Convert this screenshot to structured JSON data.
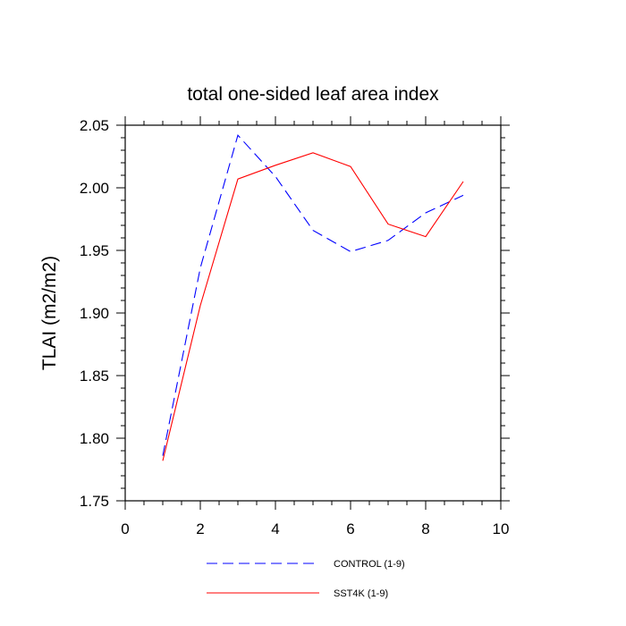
{
  "chart_data": {
    "type": "line",
    "title": "total one-sided leaf area index",
    "xlabel": "",
    "ylabel": "TLAI  (m2/m2)",
    "xlim": [
      0,
      10
    ],
    "ylim": [
      1.75,
      2.05
    ],
    "xticks": [
      0,
      2,
      4,
      6,
      8,
      10
    ],
    "xtick_labels": [
      "0",
      "2",
      "4",
      "6",
      "8",
      "10"
    ],
    "yticks": [
      1.75,
      1.8,
      1.85,
      1.9,
      1.95,
      2.0,
      2.05
    ],
    "ytick_labels": [
      "1.75",
      "1.80",
      "1.85",
      "1.90",
      "1.95",
      "2.00",
      "2.05"
    ],
    "grid": false,
    "legend_position": "bottom",
    "series": [
      {
        "name": "CONTROL (1-9)",
        "color": "#0000ff",
        "dash": "dashed",
        "x": [
          1,
          2,
          3,
          4,
          5,
          6,
          7,
          8,
          9
        ],
        "y": [
          1.786,
          1.936,
          2.042,
          2.009,
          1.966,
          1.949,
          1.958,
          1.98,
          1.994
        ]
      },
      {
        "name": "SST4K (1-9)",
        "color": "#ff0000",
        "dash": "solid",
        "x": [
          1,
          2,
          3,
          4,
          5,
          6,
          7,
          8,
          9
        ],
        "y": [
          1.782,
          1.906,
          2.007,
          2.018,
          2.028,
          2.017,
          1.971,
          1.961,
          2.005
        ]
      }
    ]
  }
}
